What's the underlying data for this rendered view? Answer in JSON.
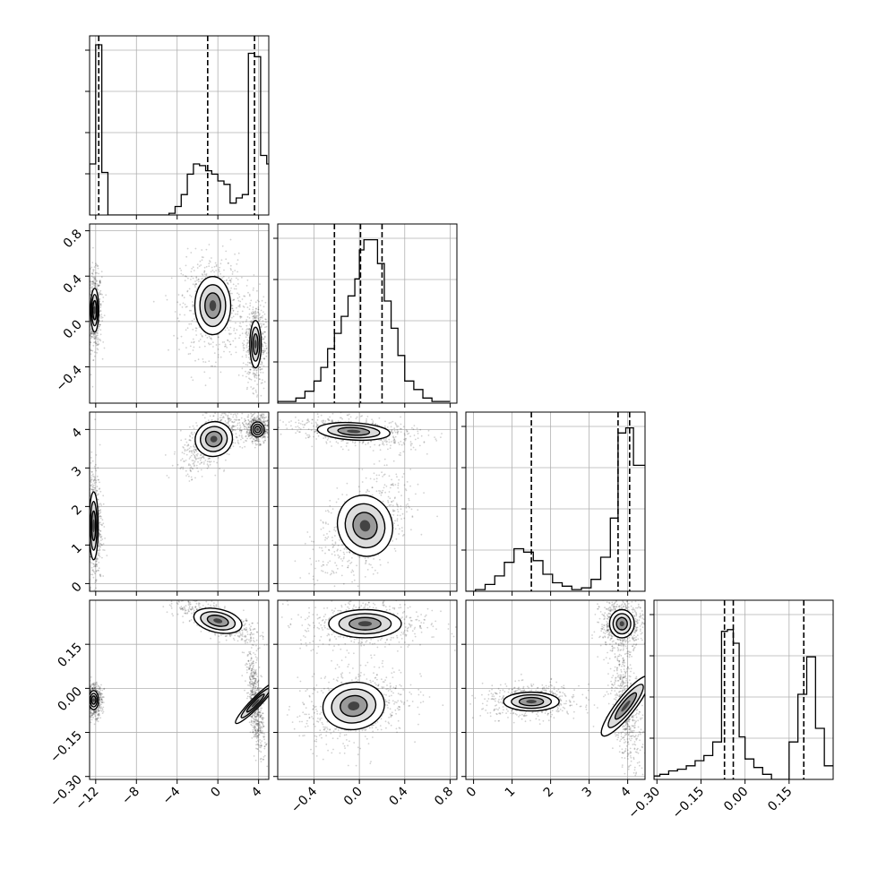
{
  "chart_data": {
    "type": "corner",
    "description_free": true,
    "grid": true,
    "parameters": [
      {
        "ticks": [
          "−12",
          "−8",
          "−4",
          "0",
          "4"
        ],
        "tick_values": [
          -12,
          -8,
          -4,
          0,
          4
        ],
        "range": [
          -12.6,
          5.0
        ]
      },
      {
        "ticks": [
          "−0.4",
          "0.0",
          "0.4",
          "0.8"
        ],
        "tick_values": [
          -0.4,
          0.0,
          0.4,
          0.8
        ],
        "range": [
          -0.72,
          0.86
        ]
      },
      {
        "ticks": [
          "0",
          "1",
          "2",
          "3",
          "4"
        ],
        "tick_values": [
          0,
          1,
          2,
          3,
          4
        ],
        "range": [
          -0.2,
          4.45
        ]
      },
      {
        "ticks": [
          "−0.30",
          "−0.15",
          "0.00",
          "0.15"
        ],
        "tick_values": [
          -0.3,
          -0.15,
          0.0,
          0.15
        ],
        "range": [
          -0.31,
          0.3
        ]
      }
    ],
    "histograms": [
      {
        "param": 0,
        "edges": [
          -12.6,
          -12.0,
          -11.4,
          -10.8,
          -10.2,
          -4.8,
          -4.2,
          -3.6,
          -3.0,
          -2.4,
          -1.8,
          -1.2,
          -0.6,
          0.0,
          0.6,
          1.2,
          1.8,
          2.4,
          3.0,
          3.6,
          4.2,
          4.8,
          5.0
        ],
        "counts": [
          0.3,
          1.0,
          0.25,
          0.0,
          0.0,
          0.01,
          0.05,
          0.12,
          0.24,
          0.3,
          0.29,
          0.26,
          0.24,
          0.2,
          0.18,
          0.07,
          0.1,
          0.12,
          0.95,
          0.93,
          0.35,
          0.3
        ],
        "quantiles": [
          -11.7,
          -1.0,
          3.6
        ]
      },
      {
        "param": 1,
        "edges": [
          -0.72,
          -0.64,
          -0.56,
          -0.48,
          -0.4,
          -0.34,
          -0.28,
          -0.22,
          -0.16,
          -0.1,
          -0.04,
          0.0,
          0.04,
          0.1,
          0.16,
          0.22,
          0.28,
          0.34,
          0.4,
          0.48,
          0.56,
          0.64,
          0.72,
          0.8
        ],
        "counts": [
          0.01,
          0.01,
          0.03,
          0.07,
          0.13,
          0.21,
          0.32,
          0.41,
          0.51,
          0.63,
          0.73,
          0.9,
          0.96,
          0.96,
          0.82,
          0.6,
          0.44,
          0.28,
          0.13,
          0.08,
          0.03,
          0.01,
          0.01
        ],
        "quantiles": [
          -0.22,
          0.01,
          0.2
        ]
      },
      {
        "param": 2,
        "edges": [
          -0.2,
          0.05,
          0.3,
          0.55,
          0.8,
          1.05,
          1.3,
          1.55,
          1.8,
          2.05,
          2.3,
          2.55,
          2.8,
          3.05,
          3.3,
          3.55,
          3.75,
          3.95,
          4.15,
          4.45
        ],
        "counts": [
          0.0,
          0.01,
          0.04,
          0.09,
          0.17,
          0.25,
          0.23,
          0.18,
          0.1,
          0.05,
          0.03,
          0.01,
          0.02,
          0.07,
          0.2,
          0.43,
          0.93,
          0.96,
          0.74
        ],
        "quantiles": [
          1.5,
          3.75,
          4.05
        ]
      },
      {
        "param": 3,
        "edges": [
          -0.31,
          -0.29,
          -0.26,
          -0.23,
          -0.2,
          -0.17,
          -0.14,
          -0.11,
          -0.08,
          -0.06,
          -0.04,
          -0.02,
          0.0,
          0.03,
          0.06,
          0.09,
          0.12,
          0.15,
          0.18,
          0.21,
          0.24,
          0.27,
          0.3
        ],
        "counts": [
          0.02,
          0.03,
          0.05,
          0.06,
          0.08,
          0.11,
          0.14,
          0.22,
          0.87,
          0.88,
          0.8,
          0.25,
          0.12,
          0.07,
          0.03,
          0.0,
          0.0,
          0.22,
          0.5,
          0.72,
          0.3,
          0.08
        ],
        "quantiles": [
          -0.07,
          -0.04,
          0.2
        ]
      }
    ],
    "joint_clusters": [
      {
        "pair": [
          0,
          1
        ],
        "clusters": [
          {
            "mx": -12.1,
            "my": 0.1,
            "sx": 0.25,
            "sy": 0.12,
            "rho": 0,
            "w": 0.9
          },
          {
            "mx": -0.5,
            "my": 0.14,
            "sx": 1.1,
            "sy": 0.16,
            "rho": 0,
            "w": 1.0
          },
          {
            "mx": 3.7,
            "my": -0.2,
            "sx": 0.35,
            "sy": 0.13,
            "rho": 0,
            "w": 0.9
          }
        ]
      },
      {
        "pair": [
          0,
          2
        ],
        "clusters": [
          {
            "mx": -12.2,
            "my": 1.5,
            "sx": 0.28,
            "sy": 0.55,
            "rho": 0,
            "w": 0.9
          },
          {
            "mx": -0.4,
            "my": 3.75,
            "sx": 1.15,
            "sy": 0.28,
            "rho": 0.6,
            "w": 1.0
          },
          {
            "mx": 3.9,
            "my": 4.0,
            "sx": 0.4,
            "sy": 0.12,
            "rho": 0,
            "w": 0.9
          }
        ]
      },
      {
        "pair": [
          0,
          3
        ],
        "clusters": [
          {
            "mx": -12.2,
            "my": -0.04,
            "sx": 0.3,
            "sy": 0.02,
            "rho": 0,
            "w": 0.9
          },
          {
            "mx": 0.0,
            "my": 0.23,
            "sx": 1.5,
            "sy": 0.025,
            "rho": -0.8,
            "w": 1.0
          },
          {
            "mx": 3.7,
            "my": -0.05,
            "sx": 0.3,
            "sy": 0.06,
            "rho": -0.6,
            "w": 0.9
          }
        ]
      },
      {
        "pair": [
          1,
          2
        ],
        "clusters": [
          {
            "mx": -0.05,
            "my": 3.95,
            "sx": 0.2,
            "sy": 0.14,
            "rho": -0.4,
            "w": 1.0
          },
          {
            "mx": 0.05,
            "my": 1.5,
            "sx": 0.15,
            "sy": 0.5,
            "rho": 0.5,
            "w": 0.9
          }
        ]
      },
      {
        "pair": [
          1,
          3
        ],
        "clusters": [
          {
            "mx": 0.05,
            "my": 0.22,
            "sx": 0.2,
            "sy": 0.03,
            "rho": 0,
            "w": 0.9
          },
          {
            "mx": -0.05,
            "my": -0.06,
            "sx": 0.17,
            "sy": 0.05,
            "rho": 0.3,
            "w": 1.0
          }
        ]
      },
      {
        "pair": [
          2,
          3
        ],
        "clusters": [
          {
            "mx": 1.5,
            "my": -0.045,
            "sx": 0.45,
            "sy": 0.02,
            "rho": 0,
            "w": 0.9
          },
          {
            "mx": 3.85,
            "my": 0.22,
            "sx": 0.2,
            "sy": 0.03,
            "rho": 0,
            "w": 1.0
          },
          {
            "mx": 3.95,
            "my": -0.06,
            "sx": 0.15,
            "sy": 0.08,
            "rho": -0.5,
            "w": 0.9
          }
        ]
      }
    ]
  }
}
